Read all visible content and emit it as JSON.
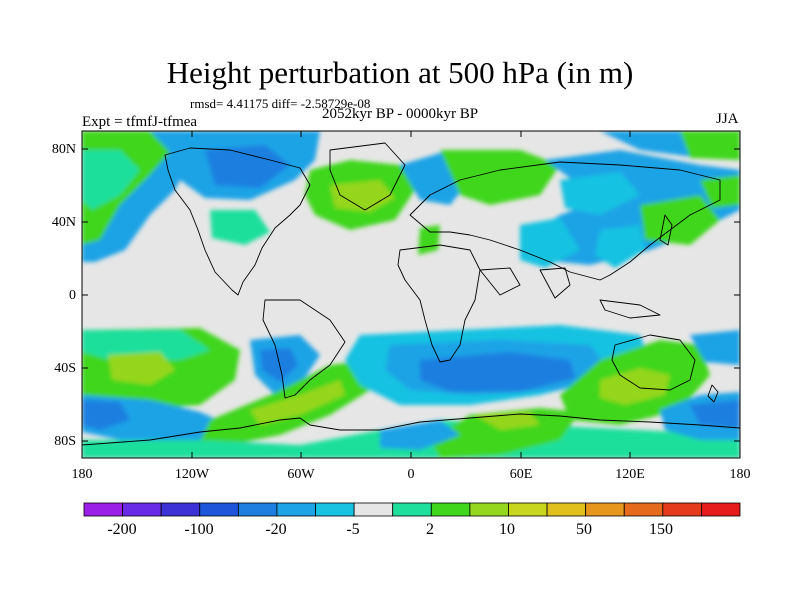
{
  "header": {
    "title": "Height perturbation at 500 hPa (in m)",
    "rmsd": "rmsd= 4.41175 diff= -2.58729e-08",
    "subtitle": "2052kyr BP - 0000kyr BP",
    "experiment": "Expt = tfmfJ-tfmea",
    "season": "JJA"
  },
  "map": {
    "lat_labels": [
      "80N",
      "40N",
      "0",
      "40S",
      "80S"
    ],
    "lon_labels": [
      "180",
      "120W",
      "60W",
      "0",
      "60E",
      "120E",
      "180"
    ],
    "background_color": "#e6e6e6",
    "coastline_color": "#000000"
  },
  "colorbar": {
    "colors": [
      "#9b1fe6",
      "#6a2be6",
      "#3c32d6",
      "#1f55d9",
      "#1e7fe0",
      "#1ea3e6",
      "#19c2e1",
      "#e6e6e6",
      "#1fdf9c",
      "#3fd61c",
      "#95d61e",
      "#c8d61e",
      "#e1c01e",
      "#e6961c",
      "#e66a1c",
      "#e63a1c",
      "#e61c1c"
    ],
    "labels": [
      "-200",
      "-100",
      "-20",
      "-5",
      "2",
      "10",
      "50",
      "150"
    ]
  }
}
